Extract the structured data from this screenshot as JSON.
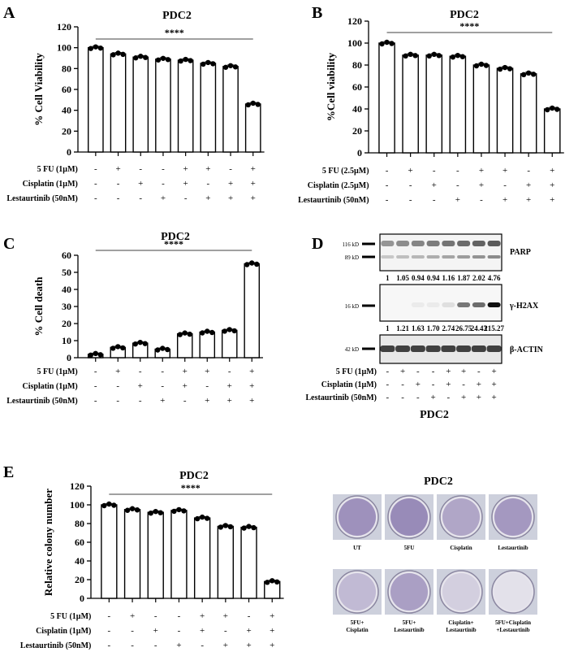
{
  "panels": {
    "A": {
      "label": "A"
    },
    "B": {
      "label": "B"
    },
    "C": {
      "label": "C"
    },
    "D": {
      "label": "D"
    },
    "E": {
      "label": "E"
    }
  },
  "chart_data": [
    {
      "id": "A",
      "type": "bar",
      "title": "PDC2",
      "ylabel": "% Cell Viability",
      "ylim": [
        0,
        120
      ],
      "yticks": [
        0,
        20,
        40,
        60,
        80,
        100,
        120
      ],
      "values": [
        100,
        94,
        91,
        89,
        88,
        85,
        82,
        46
      ],
      "significance": "****",
      "conditions": [
        {
          "label": "5 FU (1µM)",
          "signs": [
            "-",
            "+",
            "-",
            "-",
            "+",
            "+",
            "-",
            "+"
          ]
        },
        {
          "label": "Cisplatin (1µM)",
          "signs": [
            "-",
            "-",
            "+",
            "-",
            "+",
            "-",
            "+",
            "+"
          ]
        },
        {
          "label": "Lestaurtinib (50nM)",
          "signs": [
            "-",
            "-",
            "-",
            "+",
            "-",
            "+",
            "+",
            "+"
          ]
        }
      ]
    },
    {
      "id": "B",
      "type": "bar",
      "title": "PDC2",
      "ylabel": "%Cell viability",
      "ylim": [
        0,
        120
      ],
      "yticks": [
        0,
        20,
        40,
        60,
        80,
        100,
        120
      ],
      "values": [
        100,
        89,
        89,
        88,
        80,
        77,
        72,
        40
      ],
      "significance": "****",
      "conditions": [
        {
          "label": "5 FU (2.5µM)",
          "signs": [
            "-",
            "+",
            "-",
            "-",
            "+",
            "+",
            "-",
            "+"
          ]
        },
        {
          "label": "Cisplatin (2.5µM)",
          "signs": [
            "-",
            "-",
            "+",
            "-",
            "+",
            "-",
            "+",
            "+"
          ]
        },
        {
          "label": "Lestaurtinib (50nM)",
          "signs": [
            "-",
            "-",
            "-",
            "+",
            "-",
            "+",
            "+",
            "+"
          ]
        }
      ]
    },
    {
      "id": "C",
      "type": "bar",
      "title": "PDC2",
      "ylabel": "% Cell death",
      "ylim": [
        0,
        60
      ],
      "yticks": [
        0,
        10,
        20,
        30,
        40,
        50,
        60
      ],
      "values": [
        2,
        6,
        8.5,
        5,
        14,
        15,
        16,
        55
      ],
      "significance": "****",
      "conditions": [
        {
          "label": "5 FU (1µM)",
          "signs": [
            "-",
            "+",
            "-",
            "-",
            "+",
            "+",
            "-",
            "+"
          ]
        },
        {
          "label": "Cisplatin (1µM)",
          "signs": [
            "-",
            "-",
            "+",
            "-",
            "+",
            "-",
            "+",
            "+"
          ]
        },
        {
          "label": "Lestaurtinib (50nM)",
          "signs": [
            "-",
            "-",
            "-",
            "+",
            "-",
            "+",
            "+",
            "+"
          ]
        }
      ]
    },
    {
      "id": "E",
      "type": "bar",
      "title": "PDC2",
      "ylabel": "Relative colony number",
      "ylim": [
        0,
        120
      ],
      "yticks": [
        0,
        20,
        40,
        60,
        80,
        100,
        120
      ],
      "values": [
        100,
        95,
        92,
        94,
        86,
        77,
        76,
        18
      ],
      "significance": "****",
      "conditions": [
        {
          "label": "5 FU (1µM)",
          "signs": [
            "-",
            "+",
            "-",
            "-",
            "+",
            "+",
            "-",
            "+"
          ]
        },
        {
          "label": "Cisplatin (1µM)",
          "signs": [
            "-",
            "-",
            "+",
            "-",
            "+",
            "-",
            "+",
            "+"
          ]
        },
        {
          "label": "Lestaurtinib (50nM)",
          "signs": [
            "-",
            "-",
            "-",
            "+",
            "-",
            "+",
            "+",
            "+"
          ]
        }
      ]
    }
  ],
  "blot": {
    "title": "PDC2",
    "markers": {
      "parp_116": "116 kD",
      "parp_89": "89 kD",
      "h2ax": "16 kD",
      "actin": "42 kD"
    },
    "proteins": {
      "parp": "PARP",
      "h2ax": "γ-H2AX",
      "actin": "β-ACTIN"
    },
    "parp_values": [
      "1",
      "1.05",
      "0.94",
      "0.94",
      "1.16",
      "1.87",
      "2.02",
      "4.76"
    ],
    "h2ax_values": [
      "1",
      "1.21",
      "1.63",
      "1.70",
      "2.74",
      "26.75",
      "24.43",
      "215.27"
    ],
    "h2ax_intensity": [
      0.0,
      0.0,
      0.05,
      0.05,
      0.1,
      0.55,
      0.6,
      1.0
    ],
    "conditions": [
      {
        "label": "5 FU (1µM)",
        "signs": [
          "-",
          "+",
          "-",
          "-",
          "+",
          "+",
          "-",
          "+"
        ]
      },
      {
        "label": "Cisplatin (1µM)",
        "signs": [
          "-",
          "-",
          "+",
          "-",
          "+",
          "-",
          "+",
          "+"
        ]
      },
      {
        "label": "Lestaurtinib (50nM)",
        "signs": [
          "-",
          "-",
          "-",
          "+",
          "-",
          "+",
          "+",
          "+"
        ]
      }
    ]
  },
  "colony": {
    "title": "PDC2",
    "dishes": [
      {
        "label": "UT",
        "density": 0.6
      },
      {
        "label": "5FU",
        "density": 0.65
      },
      {
        "label": "Cisplatin",
        "density": 0.45
      },
      {
        "label": "Lestaurtinib",
        "density": 0.55
      },
      {
        "label": "5FU+\nCisplatin",
        "density": 0.3
      },
      {
        "label": "5FU+\nLestaurtinib",
        "density": 0.5
      },
      {
        "label": "Cisplatin+\nLestaurtinib",
        "density": 0.15
      },
      {
        "label": "5FU+Cisplatin\n+Lestaurtinib",
        "density": 0.02
      }
    ]
  }
}
